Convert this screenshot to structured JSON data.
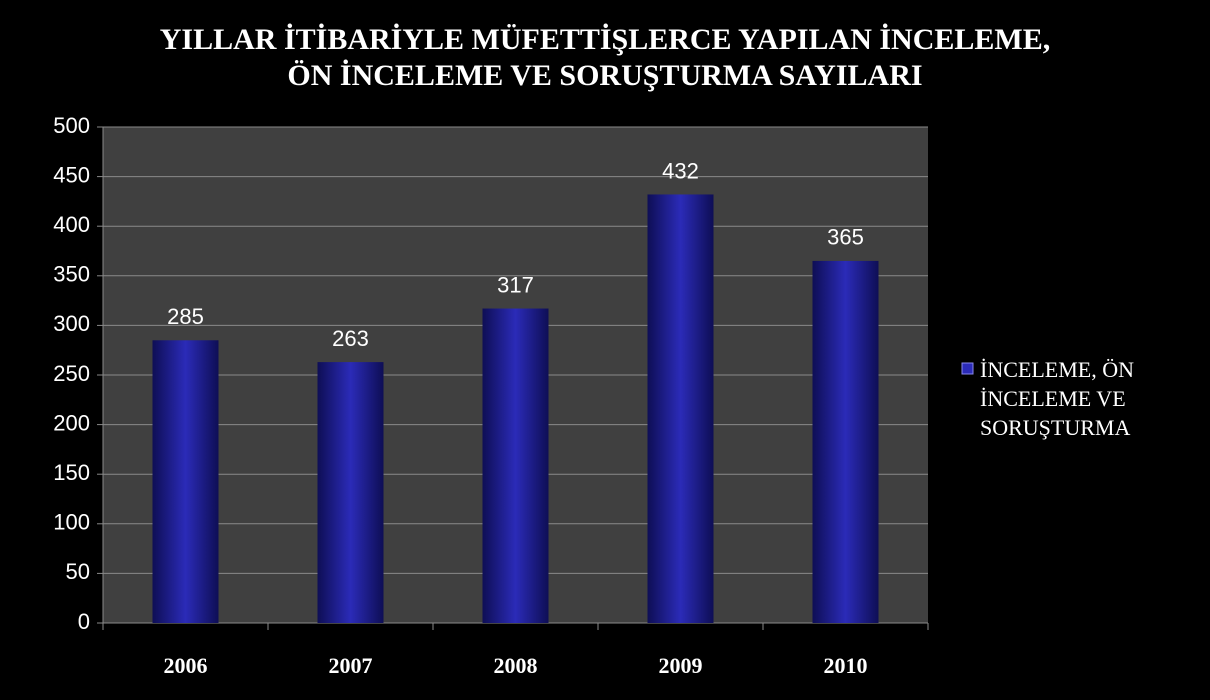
{
  "chart_data": {
    "type": "bar",
    "title": "YILLAR İTİBARİYLE MÜFETTİŞLERCE YAPILAN İNCELEME, ÖN İNCELEME VE SORUŞTURMA SAYILARI",
    "categories": [
      "2006",
      "2007",
      "2008",
      "2009",
      "2010"
    ],
    "series": [
      {
        "name": "İNCELEME, ÖN İNCELEME VE SORUŞTURMA",
        "color": "#2b2bb8",
        "values": [
          285,
          263,
          317,
          432,
          365
        ]
      }
    ],
    "ylim": [
      0,
      500
    ],
    "yticks": [
      0,
      50,
      100,
      150,
      200,
      250,
      300,
      350,
      400,
      450,
      500
    ],
    "grid": true,
    "legend": "right"
  }
}
